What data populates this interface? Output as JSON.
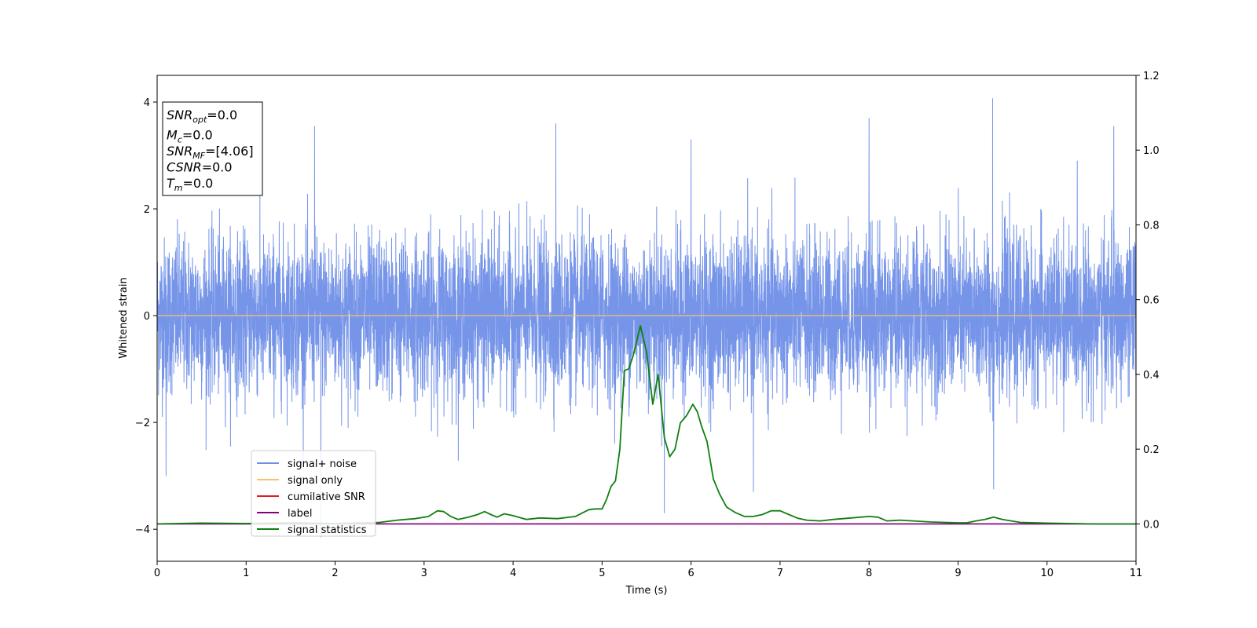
{
  "chart_data": {
    "type": "line",
    "xlabel": "Time (s)",
    "ylabel": "Whitened strain",
    "xlim": [
      0,
      11
    ],
    "ylim_left": [
      -4.6,
      4.5
    ],
    "ylim_right": [
      -0.1,
      1.2
    ],
    "x_ticks": [
      "0",
      "1",
      "2",
      "3",
      "4",
      "5",
      "6",
      "7",
      "8",
      "9",
      "10",
      "11"
    ],
    "x_tick_values": [
      0,
      1,
      2,
      3,
      4,
      5,
      6,
      7,
      8,
      9,
      10,
      11
    ],
    "y_left_ticks": [
      "4",
      "2",
      "0",
      "−2",
      "−4"
    ],
    "y_left_tick_values": [
      4,
      2,
      0,
      -2,
      -4
    ],
    "y_right_ticks": [
      "1.2",
      "1.0",
      "0.8",
      "0.6",
      "0.4",
      "0.2",
      "0.0"
    ],
    "y_right_tick_values": [
      1.2,
      1.0,
      0.8,
      0.6,
      0.4,
      0.2,
      0.0
    ],
    "info_box": [
      {
        "base": "SNR",
        "sub": "opt",
        "rest": "=0.0"
      },
      {
        "base": "M",
        "sub": "c",
        "rest": "=0.0"
      },
      {
        "base": "SNR",
        "sub": "MF",
        "rest": "=[4.06]"
      },
      {
        "base": "CSNR",
        "sub": "",
        "rest": "=0.0"
      },
      {
        "base": "T",
        "sub": "m",
        "rest": "=0.0"
      }
    ],
    "legend": {
      "placement": "lower-left",
      "entries": [
        {
          "label": "signal+ noise",
          "color": "#6f8fe8"
        },
        {
          "label": "signal only",
          "color": "#f5c16c"
        },
        {
          "label": "cumilative SNR",
          "color": "#e41a1c"
        },
        {
          "label": "label",
          "color": "#800080"
        },
        {
          "label": "signal statistics",
          "color": "#108010"
        }
      ]
    },
    "series": [
      {
        "name": "signal+ noise",
        "axis": "left",
        "color": "#6f8fe8",
        "sample_rate_hz": 2048,
        "description_range": [
          0,
          11
        ],
        "typical_envelope": [
          -1.9,
          2.0
        ],
        "peaks": [
          {
            "x": 1.77,
            "y": 3.55
          },
          {
            "x": 4.48,
            "y": 3.6
          },
          {
            "x": 6.0,
            "y": 3.3
          },
          {
            "x": 8.0,
            "y": 3.7
          },
          {
            "x": 9.39,
            "y": 4.07
          },
          {
            "x": 10.75,
            "y": 3.55
          },
          {
            "x": 1.84,
            "y": -4.15
          },
          {
            "x": 5.7,
            "y": -3.7
          },
          {
            "x": 9.4,
            "y": -3.25
          },
          {
            "x": 0.1,
            "y": -3.0
          },
          {
            "x": 6.7,
            "y": -3.3
          }
        ]
      },
      {
        "name": "signal only",
        "axis": "left",
        "color": "#f5c16c",
        "x": [
          0,
          11
        ],
        "y": [
          0,
          0
        ]
      },
      {
        "name": "cumilative SNR",
        "axis": "right",
        "color": "#e41a1c",
        "x": [
          0,
          11
        ],
        "y": [
          0,
          0
        ]
      },
      {
        "name": "label",
        "axis": "right",
        "color": "#800080",
        "x": [
          0,
          11
        ],
        "y": [
          0,
          0
        ]
      },
      {
        "name": "signal statistics",
        "axis": "right",
        "color": "#108010",
        "x": [
          0.0,
          0.5,
          1.0,
          1.5,
          2.0,
          2.5,
          2.7,
          2.9,
          3.05,
          3.15,
          3.22,
          3.3,
          3.38,
          3.5,
          3.6,
          3.68,
          3.75,
          3.82,
          3.9,
          4.0,
          4.15,
          4.3,
          4.5,
          4.7,
          4.85,
          4.92,
          5.0,
          5.05,
          5.1,
          5.15,
          5.2,
          5.25,
          5.3,
          5.35,
          5.43,
          5.5,
          5.57,
          5.63,
          5.7,
          5.76,
          5.82,
          5.88,
          5.95,
          6.02,
          6.07,
          6.12,
          6.18,
          6.25,
          6.32,
          6.4,
          6.5,
          6.6,
          6.7,
          6.8,
          6.9,
          7.0,
          7.1,
          7.2,
          7.3,
          7.45,
          7.6,
          7.8,
          8.0,
          8.1,
          8.2,
          8.35,
          8.5,
          8.7,
          9.0,
          9.1,
          9.2,
          9.3,
          9.4,
          9.5,
          9.7,
          10.0,
          10.5,
          11.0
        ],
        "y": [
          0.0,
          0.002,
          0.001,
          0.003,
          0.001,
          0.004,
          0.01,
          0.014,
          0.02,
          0.035,
          0.033,
          0.02,
          0.012,
          0.018,
          0.025,
          0.033,
          0.025,
          0.018,
          0.027,
          0.022,
          0.012,
          0.016,
          0.014,
          0.02,
          0.038,
          0.04,
          0.04,
          0.065,
          0.1,
          0.115,
          0.2,
          0.41,
          0.415,
          0.45,
          0.53,
          0.46,
          0.32,
          0.4,
          0.23,
          0.18,
          0.2,
          0.27,
          0.29,
          0.32,
          0.3,
          0.26,
          0.22,
          0.12,
          0.08,
          0.045,
          0.03,
          0.02,
          0.02,
          0.025,
          0.035,
          0.035,
          0.025,
          0.015,
          0.01,
          0.008,
          0.012,
          0.016,
          0.02,
          0.018,
          0.008,
          0.01,
          0.008,
          0.005,
          0.003,
          0.003,
          0.008,
          0.012,
          0.018,
          0.012,
          0.004,
          0.002,
          0.0,
          0.0
        ]
      }
    ]
  }
}
